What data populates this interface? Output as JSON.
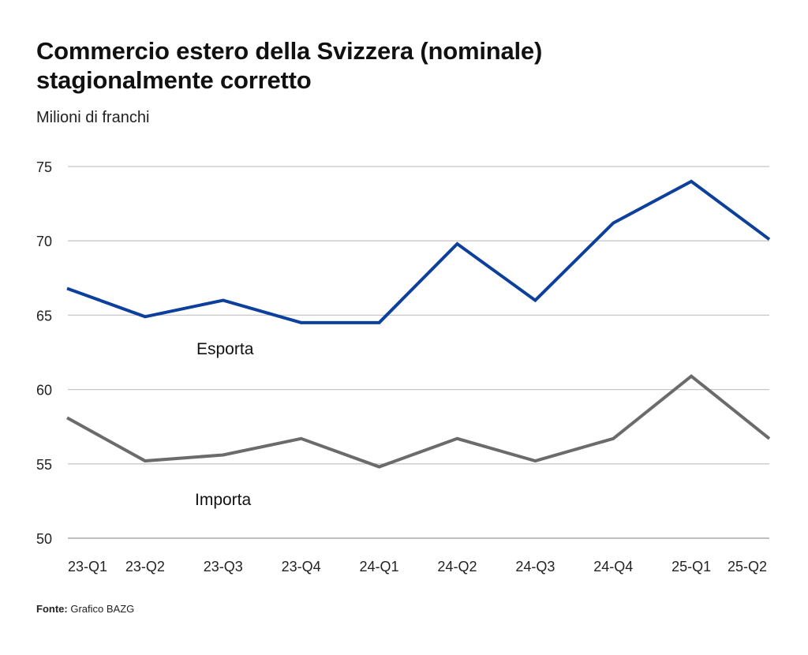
{
  "title_line1": "Commercio estero della Svizzera (nominale)",
  "title_line2": "stagionalmente corretto",
  "subtitle": "Milioni di franchi",
  "source_label": "Fonte:",
  "source_text": "Grafico BAZG",
  "chart_data": {
    "type": "line",
    "categories": [
      "23-Q1",
      "23-Q2",
      "23-Q3",
      "23-Q4",
      "24-Q1",
      "24-Q2",
      "24-Q3",
      "24-Q4",
      "25-Q1",
      "25-Q2"
    ],
    "ylim": [
      50,
      75
    ],
    "yticks": [
      50,
      55,
      60,
      65,
      70,
      75
    ],
    "grid": true,
    "legend": "inline labels under each line",
    "series": [
      {
        "name": "Esporta",
        "color": "#0d3f9c",
        "values": [
          66.8,
          64.9,
          66.0,
          64.5,
          64.5,
          69.8,
          66.0,
          71.2,
          74.0,
          70.1
        ]
      },
      {
        "name": "Importa",
        "color": "#6b6b6b",
        "values": [
          58.1,
          55.2,
          55.6,
          56.7,
          54.8,
          56.7,
          55.2,
          56.7,
          60.9,
          56.7
        ]
      }
    ]
  }
}
